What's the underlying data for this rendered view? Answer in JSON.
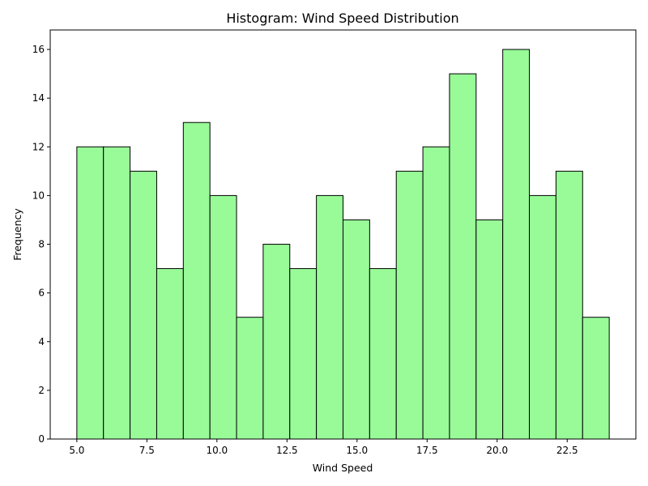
{
  "chart_data": {
    "type": "bar",
    "title": "Histogram: Wind Speed Distribution",
    "xlabel": "Wind Speed",
    "ylabel": "Frequency",
    "bin_edges": [
      5.0,
      5.95,
      6.9,
      7.85,
      8.8,
      9.75,
      10.7,
      11.65,
      12.6,
      13.55,
      14.5,
      15.45,
      16.4,
      17.35,
      18.3,
      19.25,
      20.2,
      21.15,
      22.1,
      23.05,
      24.0
    ],
    "values": [
      12,
      12,
      11,
      7,
      13,
      10,
      5,
      8,
      7,
      10,
      9,
      7,
      11,
      12,
      15,
      9,
      16,
      10,
      11,
      5
    ],
    "xlim": [
      4.05,
      24.95
    ],
    "ylim": [
      0,
      16.8
    ],
    "xticks": [
      5.0,
      7.5,
      10.0,
      12.5,
      15.0,
      17.5,
      20.0,
      22.5
    ],
    "xtick_labels": [
      "5.0",
      "7.5",
      "10.0",
      "12.5",
      "15.0",
      "17.5",
      "20.0",
      "22.5"
    ],
    "yticks": [
      0,
      2,
      4,
      6,
      8,
      10,
      12,
      14,
      16
    ],
    "ytick_labels": [
      "0",
      "2",
      "4",
      "6",
      "8",
      "10",
      "12",
      "14",
      "16"
    ],
    "bar_color": "#98fb98",
    "edge_color": "#000000",
    "grid": false,
    "legend": "none"
  }
}
